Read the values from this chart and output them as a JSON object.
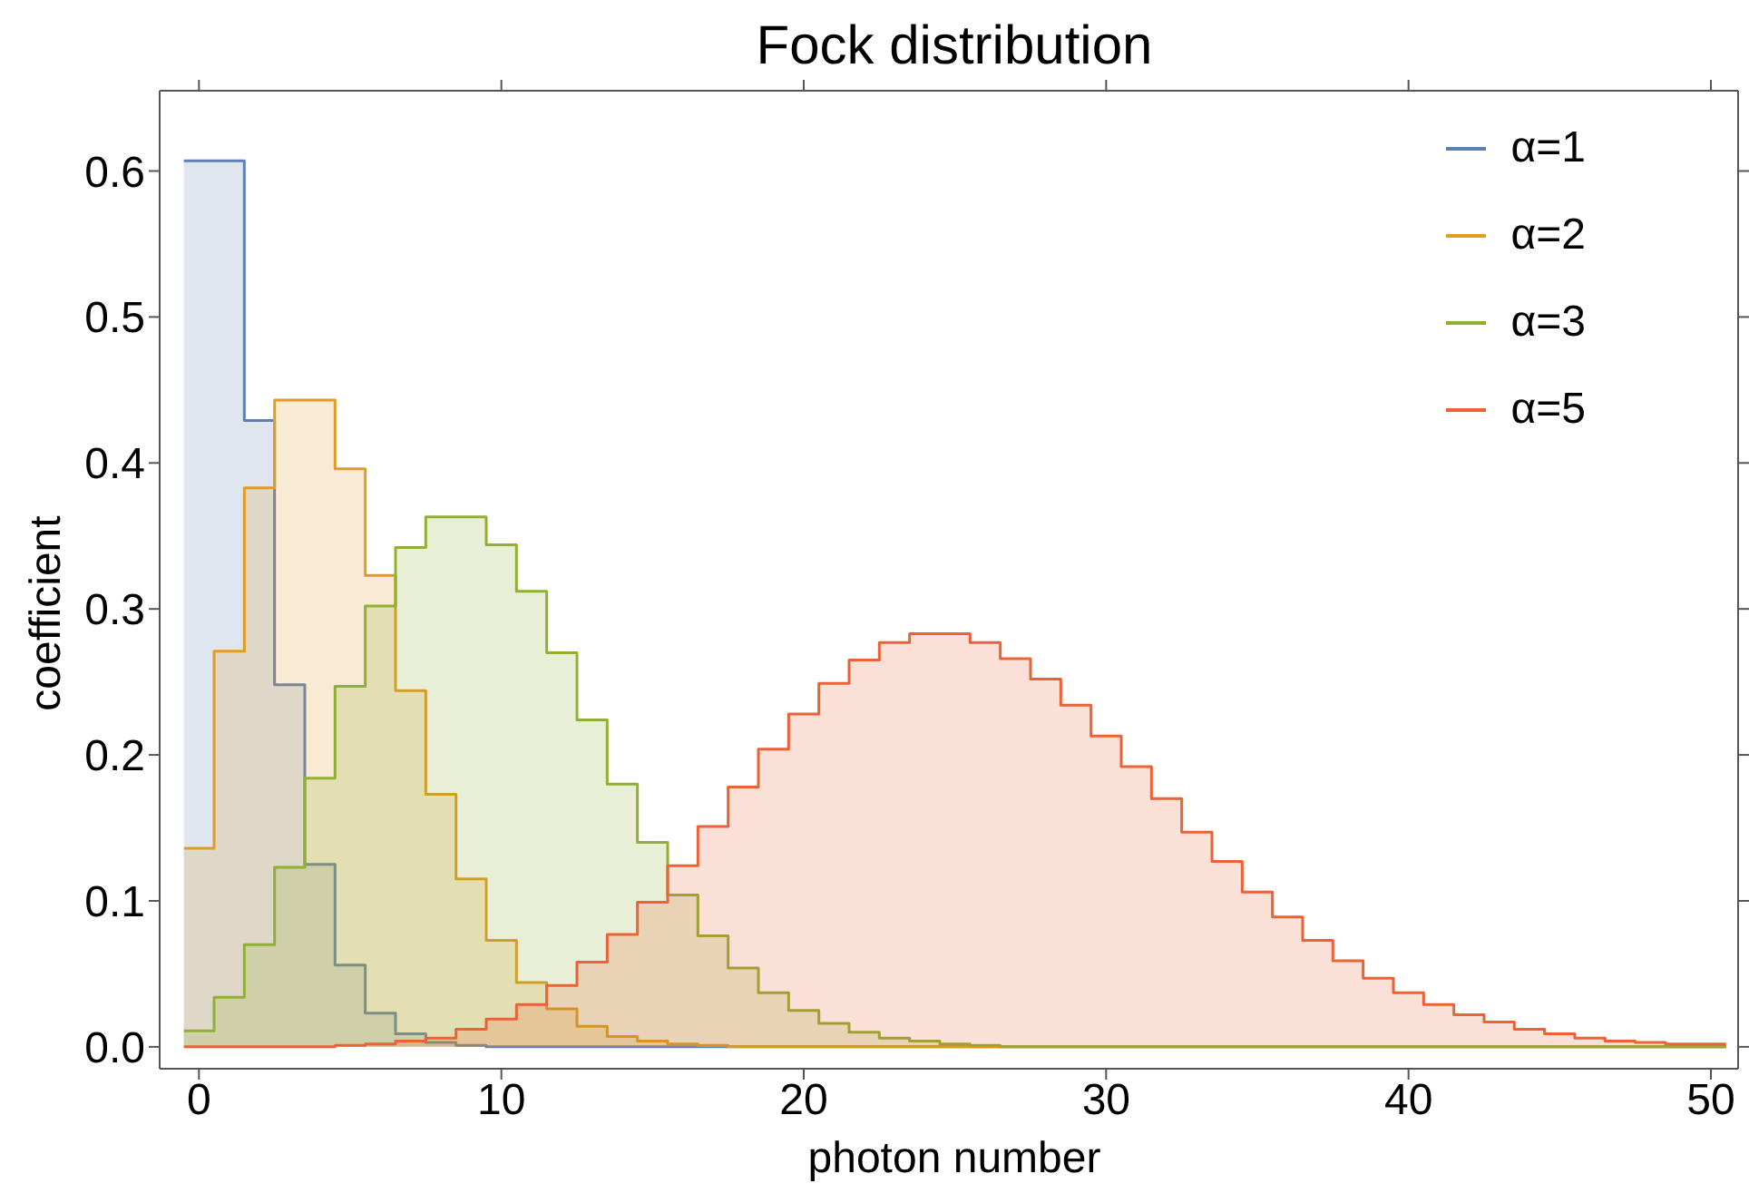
{
  "chart_data": {
    "type": "histogram",
    "title": "Fock distribution",
    "xlabel": "photon number",
    "ylabel": "coefficient",
    "bins": [
      -0.5,
      0.5,
      1.5,
      2.5,
      3.5,
      4.5,
      5.5,
      6.5,
      7.5,
      8.5,
      9.5,
      10.5,
      11.5,
      12.5,
      13.5,
      14.5,
      15.5,
      16.5,
      17.5,
      18.5,
      19.5,
      20.5,
      21.5,
      22.5,
      23.5,
      24.5,
      25.5,
      26.5,
      27.5,
      28.5,
      29.5,
      30.5,
      31.5,
      32.5,
      33.5,
      34.5,
      35.5,
      36.5,
      37.5,
      38.5,
      39.5,
      40.5,
      41.5,
      42.5,
      43.5,
      44.5,
      45.5,
      46.5,
      47.5,
      48.5,
      49.5,
      50.5
    ],
    "series": [
      {
        "name": "α=1",
        "color": "#5e81b5",
        "values": [
          0.607,
          0.607,
          0.429,
          0.248,
          0.125,
          0.056,
          0.023,
          0.009,
          0.003,
          0.001,
          0,
          0,
          0,
          0,
          0,
          0,
          0,
          0,
          0,
          0,
          0,
          0,
          0,
          0,
          0,
          0,
          0,
          0,
          0,
          0,
          0,
          0,
          0,
          0,
          0,
          0,
          0,
          0,
          0,
          0,
          0,
          0,
          0,
          0,
          0,
          0,
          0,
          0,
          0,
          0,
          0
        ]
      },
      {
        "name": "α=2",
        "color": "#e19c24",
        "values": [
          0.136,
          0.271,
          0.383,
          0.443,
          0.443,
          0.396,
          0.323,
          0.244,
          0.173,
          0.115,
          0.073,
          0.044,
          0.026,
          0.014,
          0.007,
          0.004,
          0.002,
          0.001,
          0,
          0,
          0,
          0,
          0,
          0,
          0,
          0,
          0,
          0,
          0,
          0,
          0,
          0,
          0,
          0,
          0,
          0,
          0,
          0,
          0,
          0,
          0,
          0,
          0,
          0,
          0,
          0,
          0,
          0,
          0,
          0,
          0
        ]
      },
      {
        "name": "α=3",
        "color": "#8fb032",
        "values": [
          0.011,
          0.034,
          0.07,
          0.123,
          0.184,
          0.247,
          0.302,
          0.342,
          0.363,
          0.363,
          0.344,
          0.312,
          0.27,
          0.224,
          0.18,
          0.14,
          0.104,
          0.076,
          0.054,
          0.037,
          0.025,
          0.016,
          0.01,
          0.006,
          0.004,
          0.002,
          0.001,
          0,
          0,
          0,
          0,
          0,
          0,
          0,
          0,
          0,
          0,
          0,
          0,
          0,
          0,
          0,
          0,
          0,
          0,
          0,
          0,
          0,
          0,
          0,
          0
        ]
      },
      {
        "name": "α=5",
        "color": "#eb6235",
        "values": [
          0,
          0,
          0,
          0,
          0,
          0.001,
          0.002,
          0.004,
          0.006,
          0.012,
          0.019,
          0.029,
          0.042,
          0.058,
          0.077,
          0.099,
          0.124,
          0.151,
          0.178,
          0.204,
          0.228,
          0.249,
          0.265,
          0.277,
          0.283,
          0.283,
          0.277,
          0.266,
          0.252,
          0.234,
          0.213,
          0.192,
          0.17,
          0.147,
          0.127,
          0.106,
          0.089,
          0.073,
          0.059,
          0.047,
          0.037,
          0.029,
          0.022,
          0.017,
          0.012,
          0.009,
          0.006,
          0.004,
          0.003,
          0.002,
          0.002
        ]
      }
    ],
    "xlim": [
      -1.3,
      50.9
    ],
    "xticks": [
      0,
      10,
      20,
      30,
      40,
      50
    ],
    "ylim": [
      -0.015,
      0.655
    ],
    "yticks": [
      {
        "value": 0,
        "label": "0.0"
      },
      {
        "value": 0.1,
        "label": "0.1"
      },
      {
        "value": 0.2,
        "label": "0.2"
      },
      {
        "value": 0.3,
        "label": "0.3"
      },
      {
        "value": 0.4,
        "label": "0.4"
      },
      {
        "value": 0.5,
        "label": "0.5"
      },
      {
        "value": 0.6,
        "label": "0.6"
      }
    ],
    "legend": "top right",
    "grid": false
  }
}
